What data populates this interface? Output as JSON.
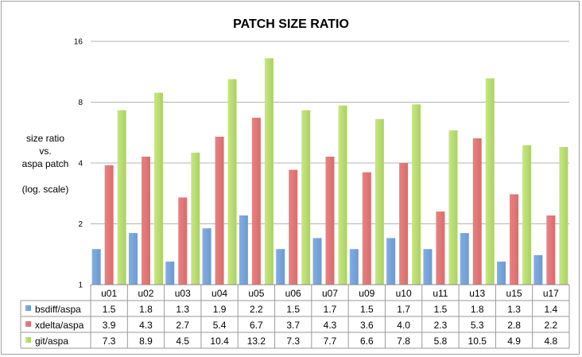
{
  "chart_data": {
    "type": "bar",
    "title": "PATCH SIZE RATIO",
    "ylabel_lines": [
      "size ratio",
      "vs.",
      "aspa patch",
      "",
      "(log. scale)"
    ],
    "yscale": "log2",
    "ylim": [
      1,
      16
    ],
    "yticks": [
      1,
      2,
      4,
      8,
      16
    ],
    "grid": true,
    "legend": "data-table-left",
    "categories": [
      "u01",
      "u02",
      "u03",
      "u04",
      "u05",
      "u06",
      "u07",
      "u09",
      "u10",
      "u11",
      "u13",
      "u15",
      "u17"
    ],
    "series": [
      {
        "name": "bsdiff/aspa",
        "color": "#7faee8",
        "values": [
          1.5,
          1.8,
          1.3,
          1.9,
          2.2,
          1.5,
          1.7,
          1.5,
          1.7,
          1.5,
          1.8,
          1.3,
          1.4
        ]
      },
      {
        "name": "xdelta/aspa",
        "color": "#ef7f7f",
        "values": [
          3.9,
          4.3,
          2.7,
          5.4,
          6.7,
          3.7,
          4.3,
          3.6,
          4.0,
          2.3,
          5.3,
          2.8,
          2.2
        ]
      },
      {
        "name": "git/aspa",
        "color": "#c5ea7a",
        "values": [
          7.3,
          8.9,
          4.5,
          10.4,
          13.2,
          7.3,
          7.7,
          6.6,
          7.8,
          5.8,
          10.5,
          4.9,
          4.8
        ]
      }
    ]
  }
}
